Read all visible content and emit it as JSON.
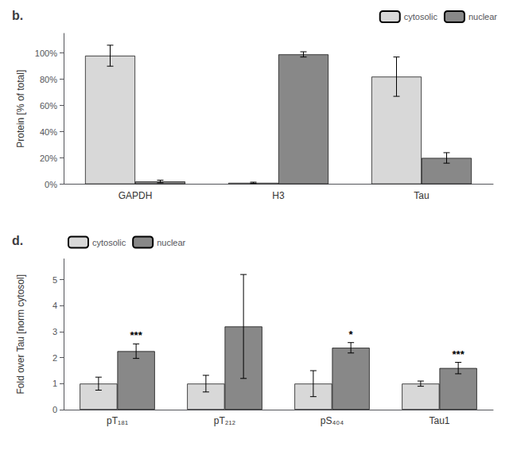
{
  "chart_data": [
    {
      "type": "bar",
      "title": "b.",
      "categories": [
        "GAPDH",
        "H3",
        "Tau"
      ],
      "series": [
        {
          "name": "cytosolic",
          "color": "#d8d8d8",
          "values": [
            98,
            1,
            82
          ],
          "errors": [
            8,
            0.5,
            15
          ]
        },
        {
          "name": "nuclear",
          "color": "#888888",
          "values": [
            2,
            99,
            20
          ],
          "errors": [
            1,
            2,
            4
          ]
        }
      ],
      "ylabel": "Protein [% of total]",
      "ylim": [
        0,
        115
      ],
      "yticks": [
        {
          "value": 0,
          "label": "0%"
        },
        {
          "value": 20,
          "label": "20%"
        },
        {
          "value": 40,
          "label": "40%"
        },
        {
          "value": 60,
          "label": "60%"
        },
        {
          "value": 80,
          "label": "80%"
        },
        {
          "value": 100,
          "label": "100%"
        }
      ],
      "grid": false,
      "legend": "upper right"
    },
    {
      "type": "bar",
      "title": "d.",
      "categories": [
        "pT₁₈₁",
        "pT₂₁₂",
        "pS₄₀₄",
        "Tau1"
      ],
      "series": [
        {
          "name": "cytosolic",
          "color": "#d8d8d8",
          "values": [
            1.0,
            1.0,
            1.0,
            1.0
          ],
          "errors": [
            0.25,
            0.32,
            0.5,
            0.1
          ]
        },
        {
          "name": "nuclear",
          "color": "#888888",
          "values": [
            2.25,
            3.2,
            2.38,
            1.6
          ],
          "errors": [
            0.28,
            2.0,
            0.2,
            0.22
          ]
        }
      ],
      "ylabel": "Fold over Tau [norm cytosol]",
      "ylim": [
        0,
        5.8
      ],
      "yticks": [
        0,
        1,
        2,
        3,
        4,
        5
      ],
      "annotations": [
        {
          "category": "pT₁₈₁",
          "series": "nuclear",
          "text": "***"
        },
        {
          "category": "pS₄₀₄",
          "series": "nuclear",
          "text": "*"
        },
        {
          "category": "Tau1",
          "series": "nuclear",
          "text": "***"
        }
      ],
      "grid": false,
      "legend": "upper left"
    }
  ]
}
